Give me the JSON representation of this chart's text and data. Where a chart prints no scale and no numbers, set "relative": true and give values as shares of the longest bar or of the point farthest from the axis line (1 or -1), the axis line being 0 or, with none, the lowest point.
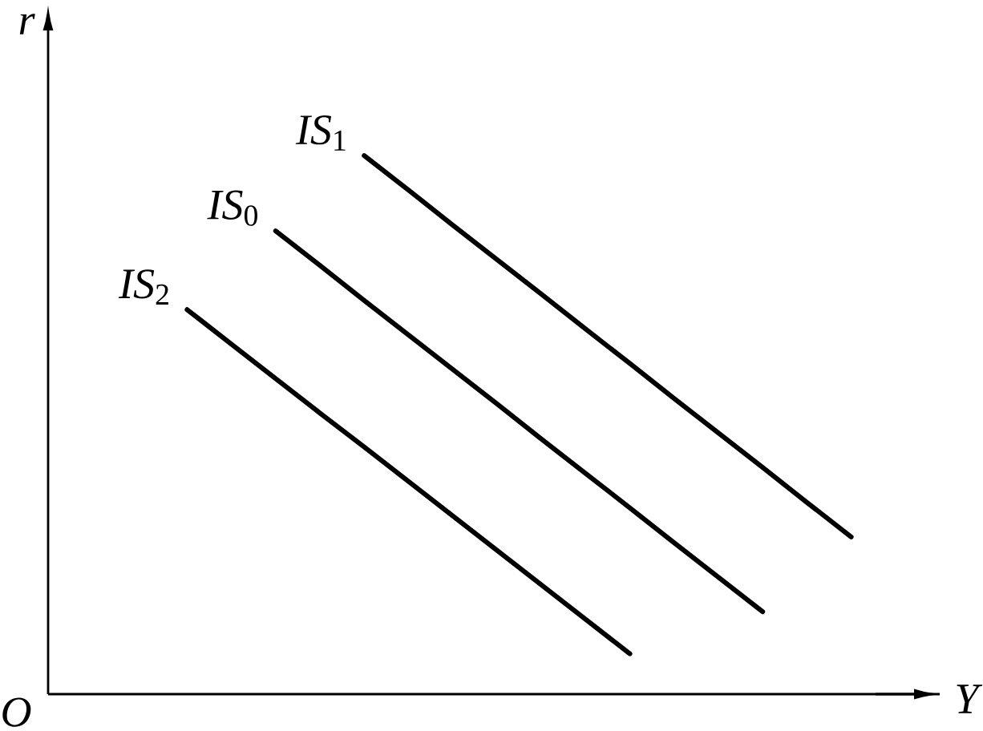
{
  "chart_data": {
    "type": "line",
    "relative": true,
    "xlabel": "Y",
    "ylabel": "r",
    "annotations": [
      "O"
    ],
    "marker": "none",
    "line_style": "solid",
    "categories": [
      null,
      null,
      null,
      null,
      null,
      null,
      null,
      null,
      null,
      null,
      null,
      null,
      null,
      null,
      null,
      null
    ],
    "series": [
      {
        "name": "*IS*$_{1}$",
        "color": "#000000",
        "values": [
          null,
          null,
          null,
          null,
          1,
          0.936,
          0.871,
          0.807,
          0.743,
          0.678,
          0.614,
          0.549,
          0.485,
          0.421,
          0.356,
          0.292
        ]
      },
      {
        "name": "*IS*$_{0}$",
        "color": "#000000",
        "values": [
          null,
          null,
          0.86,
          0.796,
          0.731,
          0.667,
          0.603,
          0.539,
          0.474,
          0.41,
          0.346,
          0.281,
          0.217,
          0.153,
          null,
          null
        ]
      },
      {
        "name": "*IS*$_{2}$",
        "color": "#000000",
        "values": [
          0.714,
          0.65,
          0.586,
          0.522,
          0.459,
          0.395,
          0.331,
          0.267,
          0.203,
          0.139,
          0.075,
          null,
          null,
          null,
          null,
          null
        ]
      }
    ]
  }
}
